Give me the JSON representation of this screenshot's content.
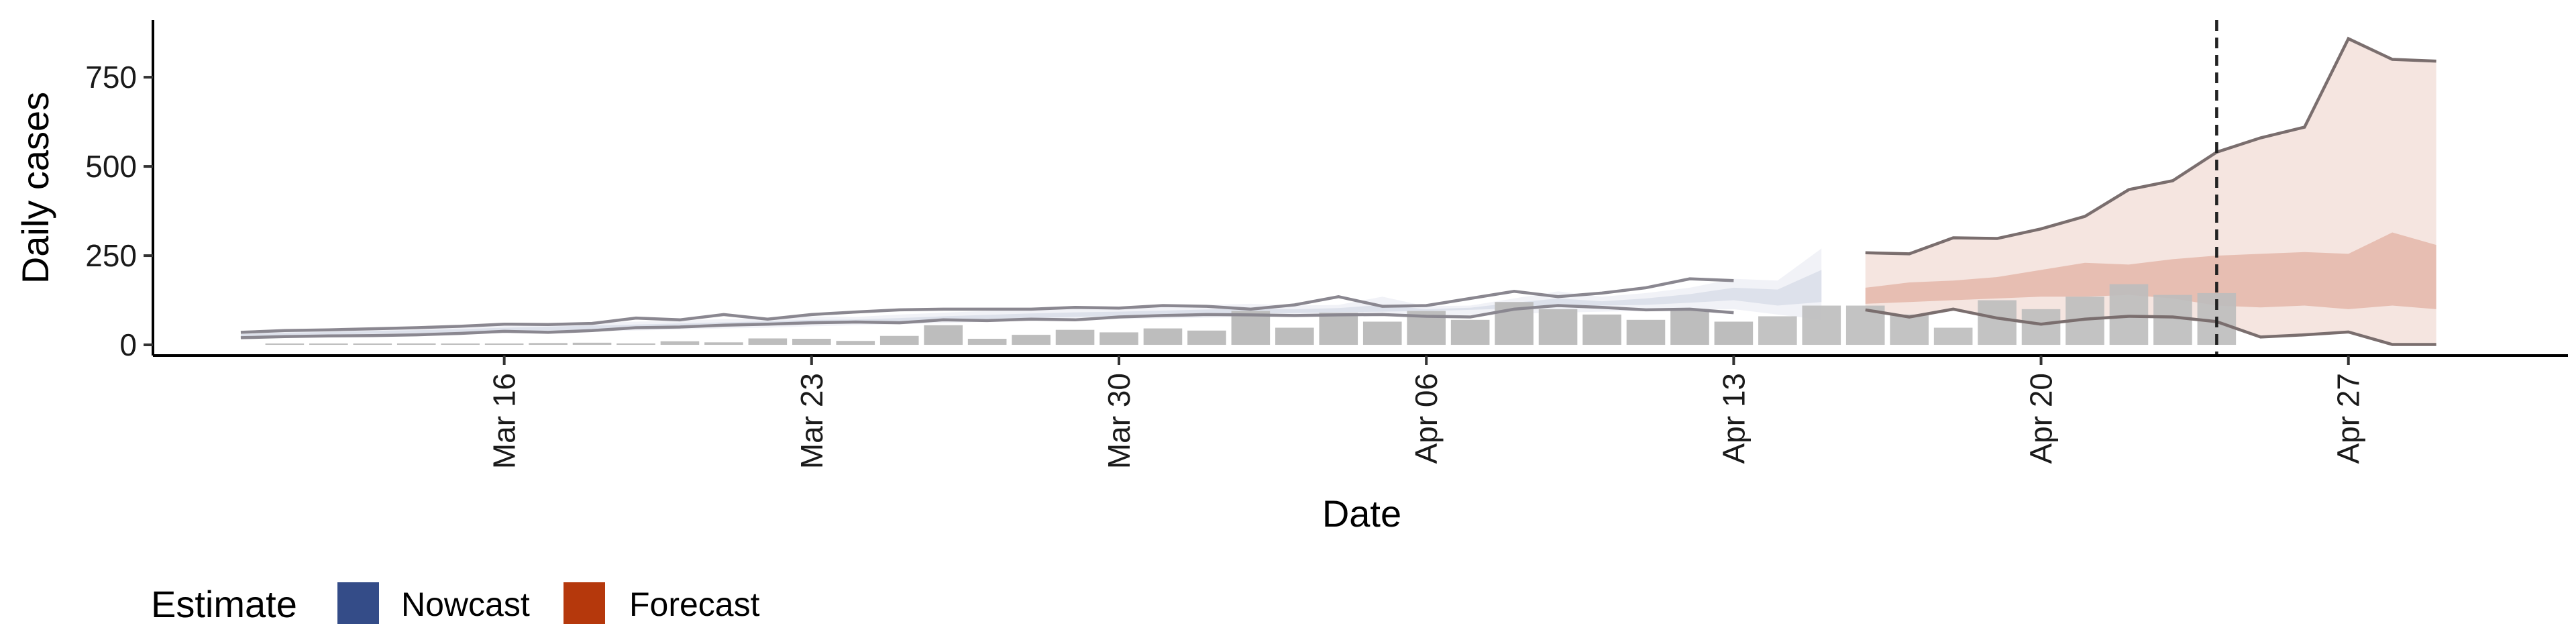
{
  "chart_data": {
    "type": "bar",
    "xlabel": "Date",
    "ylabel": "Daily cases",
    "xlim": [
      "2020-03-08",
      "2020-05-02"
    ],
    "ylim": [
      -30,
      910
    ],
    "yticks": [
      0,
      250,
      500,
      750
    ],
    "xticks": [
      {
        "date": "2020-03-16",
        "label": "Mar 16"
      },
      {
        "date": "2020-03-23",
        "label": "Mar 23"
      },
      {
        "date": "2020-03-30",
        "label": "Mar 30"
      },
      {
        "date": "2020-04-06",
        "label": "Apr 06"
      },
      {
        "date": "2020-04-13",
        "label": "Apr 13"
      },
      {
        "date": "2020-04-20",
        "label": "Apr 20"
      },
      {
        "date": "2020-04-27",
        "label": "Apr 27"
      }
    ],
    "reference_date": "2020-04-24",
    "reported_cases": {
      "dates": [
        "2020-03-11",
        "2020-03-12",
        "2020-03-13",
        "2020-03-14",
        "2020-03-15",
        "2020-03-16",
        "2020-03-17",
        "2020-03-18",
        "2020-03-19",
        "2020-03-20",
        "2020-03-21",
        "2020-03-22",
        "2020-03-23",
        "2020-03-24",
        "2020-03-25",
        "2020-03-26",
        "2020-03-27",
        "2020-03-28",
        "2020-03-29",
        "2020-03-30",
        "2020-03-31",
        "2020-04-01",
        "2020-04-02",
        "2020-04-03",
        "2020-04-04",
        "2020-04-05",
        "2020-04-06",
        "2020-04-07",
        "2020-04-08",
        "2020-04-09",
        "2020-04-10",
        "2020-04-11",
        "2020-04-12",
        "2020-04-13",
        "2020-04-14",
        "2020-04-15",
        "2020-04-16",
        "2020-04-17",
        "2020-04-18",
        "2020-04-19",
        "2020-04-20",
        "2020-04-21",
        "2020-04-22",
        "2020-04-23",
        "2020-04-24"
      ],
      "values": [
        2,
        3,
        2,
        4,
        3,
        1,
        5,
        6,
        4,
        10,
        7,
        18,
        17,
        11,
        25,
        55,
        17,
        28,
        42,
        35,
        46,
        40,
        95,
        48,
        90,
        65,
        95,
        70,
        120,
        100,
        85,
        70,
        100,
        65,
        80,
        110,
        110,
        85,
        48,
        125,
        100,
        135,
        170,
        140,
        145
      ]
    },
    "series": [
      {
        "name": "Nowcast",
        "color": "#344c88",
        "dates": [
          "2020-03-10",
          "2020-03-11",
          "2020-03-12",
          "2020-03-13",
          "2020-03-14",
          "2020-03-15",
          "2020-03-16",
          "2020-03-17",
          "2020-03-18",
          "2020-03-19",
          "2020-03-20",
          "2020-03-21",
          "2020-03-22",
          "2020-03-23",
          "2020-03-24",
          "2020-03-25",
          "2020-03-26",
          "2020-03-27",
          "2020-03-28",
          "2020-03-29",
          "2020-03-30",
          "2020-03-31",
          "2020-04-01",
          "2020-04-02",
          "2020-04-03",
          "2020-04-04",
          "2020-04-05",
          "2020-04-06",
          "2020-04-07",
          "2020-04-08",
          "2020-04-09",
          "2020-04-10",
          "2020-04-11",
          "2020-04-12",
          "2020-04-13",
          "2020-04-14",
          "2020-04-15"
        ],
        "lower_90": [
          20,
          23,
          25,
          26,
          28,
          30,
          33,
          35,
          38,
          40,
          43,
          46,
          48,
          52,
          55,
          58,
          61,
          65,
          68,
          70,
          72,
          74,
          76,
          78,
          79,
          80,
          81,
          82,
          84,
          87,
          90,
          93,
          95,
          98,
          100,
          85,
          70
        ],
        "upper_90": [
          35,
          40,
          42,
          45,
          48,
          52,
          58,
          60,
          62,
          65,
          68,
          72,
          75,
          80,
          78,
          85,
          90,
          95,
          100,
          103,
          105,
          108,
          112,
          115,
          110,
          112,
          135,
          108,
          110,
          130,
          150,
          135,
          145,
          160,
          185,
          180,
          270
        ],
        "lower_50": [
          24,
          27,
          29,
          31,
          33,
          35,
          38,
          40,
          43,
          46,
          48,
          52,
          55,
          58,
          62,
          65,
          68,
          72,
          75,
          78,
          81,
          84,
          87,
          88,
          89,
          91,
          93,
          95,
          98,
          102,
          108,
          110,
          112,
          118,
          125,
          110,
          120
        ],
        "upper_50": [
          30,
          34,
          36,
          39,
          41,
          44,
          48,
          51,
          54,
          57,
          60,
          63,
          66,
          70,
          71,
          75,
          80,
          84,
          88,
          91,
          93,
          96,
          99,
          102,
          100,
          103,
          112,
          100,
          104,
          118,
          130,
          122,
          130,
          142,
          160,
          155,
          210
        ],
        "outline_upper": [
          35,
          40,
          42,
          45,
          48,
          52,
          58,
          57,
          60,
          75,
          70,
          85,
          72,
          85,
          92,
          98,
          100,
          100,
          100,
          105,
          103,
          110,
          108,
          100,
          112,
          135,
          108,
          110,
          130,
          150,
          135,
          145,
          160,
          185,
          180
        ],
        "outline_lower": [
          20,
          23,
          25,
          26,
          28,
          32,
          38,
          35,
          40,
          48,
          50,
          55,
          58,
          62,
          64,
          62,
          70,
          68,
          72,
          70,
          78,
          82,
          85,
          84,
          82,
          84,
          85,
          80,
          78,
          100,
          110,
          105,
          98,
          100,
          90
        ]
      },
      {
        "name": "Forecast",
        "color": "#b5380c",
        "dates": [
          "2020-04-16",
          "2020-04-17",
          "2020-04-18",
          "2020-04-19",
          "2020-04-20",
          "2020-04-21",
          "2020-04-22",
          "2020-04-23",
          "2020-04-24",
          "2020-04-25",
          "2020-04-26",
          "2020-04-27",
          "2020-04-28",
          "2020-04-29"
        ],
        "lower_90": [
          98,
          78,
          100,
          75,
          58,
          72,
          80,
          78,
          65,
          22,
          28,
          36,
          1,
          1
        ],
        "upper_90": [
          258,
          255,
          300,
          298,
          325,
          360,
          435,
          460,
          540,
          580,
          610,
          858,
          800,
          795
        ],
        "lower_50": [
          115,
          120,
          125,
          130,
          135,
          135,
          140,
          130,
          110,
          105,
          110,
          100,
          110,
          100
        ],
        "upper_50": [
          160,
          175,
          180,
          190,
          210,
          230,
          225,
          240,
          250,
          255,
          260,
          255,
          315,
          280
        ]
      }
    ],
    "legend": {
      "title": "Estimate",
      "position": "bottom-left",
      "items": [
        {
          "label": "Nowcast",
          "color": "#344c88"
        },
        {
          "label": "Forecast",
          "color": "#b5380c"
        }
      ]
    },
    "colors": {
      "bars": "#bdbdbd",
      "band_line": "#7a6e6e",
      "reference_line": "#222222"
    }
  }
}
